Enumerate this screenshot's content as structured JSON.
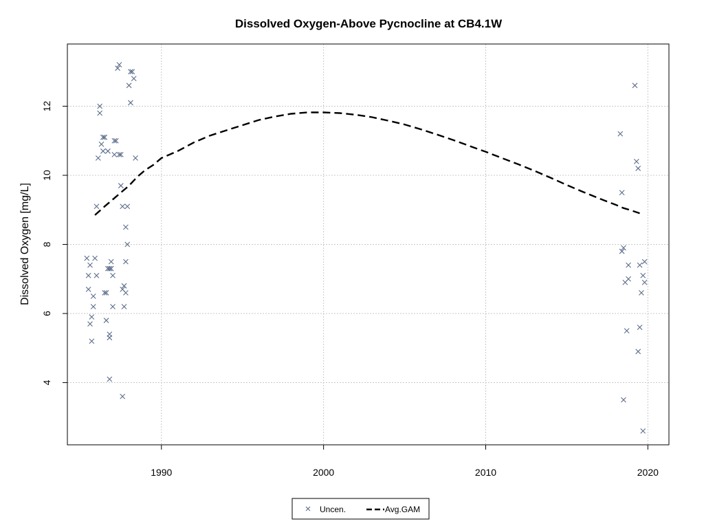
{
  "chart_data": {
    "type": "scatter",
    "title": "Dissolved Oxygen-Above Pycnocline at CB4.1W",
    "xlabel": "",
    "ylabel": "Dissolved Oxygen [mg/L]",
    "xlim": [
      1984.2,
      2021.3
    ],
    "ylim": [
      2.2,
      13.8
    ],
    "x_ticks": [
      1990,
      2000,
      2010,
      2020
    ],
    "y_ticks": [
      4,
      6,
      8,
      10,
      12
    ],
    "grid": true,
    "legend_position": "bottom-center",
    "series": [
      {
        "name": "Uncen.",
        "kind": "points",
        "marker": "x",
        "color": "#5a6c8a",
        "points": [
          [
            1985.4,
            7.6
          ],
          [
            1985.5,
            7.1
          ],
          [
            1985.5,
            6.7
          ],
          [
            1985.6,
            7.4
          ],
          [
            1985.6,
            5.7
          ],
          [
            1985.7,
            5.9
          ],
          [
            1985.7,
            5.2
          ],
          [
            1985.8,
            6.5
          ],
          [
            1985.8,
            6.2
          ],
          [
            1985.9,
            7.6
          ],
          [
            1986.0,
            7.1
          ],
          [
            1986.0,
            9.1
          ],
          [
            1986.1,
            10.5
          ],
          [
            1986.2,
            12.0
          ],
          [
            1986.2,
            11.8
          ],
          [
            1986.4,
            11.1
          ],
          [
            1986.3,
            10.9
          ],
          [
            1986.4,
            10.7
          ],
          [
            1986.5,
            11.1
          ],
          [
            1986.5,
            6.6
          ],
          [
            1986.6,
            6.6
          ],
          [
            1986.6,
            5.8
          ],
          [
            1986.7,
            7.3
          ],
          [
            1986.7,
            10.7
          ],
          [
            1986.8,
            7.3
          ],
          [
            1986.8,
            5.4
          ],
          [
            1986.8,
            5.3
          ],
          [
            1986.8,
            4.1
          ],
          [
            1986.9,
            7.5
          ],
          [
            1986.9,
            7.3
          ],
          [
            1987.0,
            7.1
          ],
          [
            1987.0,
            6.2
          ],
          [
            1987.1,
            10.6
          ],
          [
            1987.1,
            11.0
          ],
          [
            1987.2,
            11.0
          ],
          [
            1987.3,
            13.1
          ],
          [
            1987.4,
            13.2
          ],
          [
            1987.4,
            10.6
          ],
          [
            1987.5,
            10.6
          ],
          [
            1987.5,
            9.7
          ],
          [
            1987.6,
            9.1
          ],
          [
            1987.6,
            6.7
          ],
          [
            1987.6,
            3.6
          ],
          [
            1987.7,
            6.8
          ],
          [
            1987.7,
            6.2
          ],
          [
            1987.8,
            6.6
          ],
          [
            1987.8,
            8.5
          ],
          [
            1987.8,
            7.5
          ],
          [
            1987.9,
            8.0
          ],
          [
            1987.9,
            9.1
          ],
          [
            1988.0,
            12.6
          ],
          [
            1988.1,
            12.1
          ],
          [
            1988.1,
            13.0
          ],
          [
            1988.2,
            13.0
          ],
          [
            1988.3,
            12.8
          ],
          [
            1988.4,
            10.5
          ],
          [
            2018.3,
            11.2
          ],
          [
            2018.4,
            9.5
          ],
          [
            2018.4,
            7.8
          ],
          [
            2018.5,
            7.9
          ],
          [
            2018.5,
            3.5
          ],
          [
            2018.6,
            6.9
          ],
          [
            2018.7,
            5.5
          ],
          [
            2018.8,
            7.4
          ],
          [
            2018.8,
            7.0
          ],
          [
            2019.2,
            12.6
          ],
          [
            2019.3,
            10.4
          ],
          [
            2019.4,
            10.2
          ],
          [
            2019.4,
            4.9
          ],
          [
            2019.5,
            7.4
          ],
          [
            2019.5,
            5.6
          ],
          [
            2019.6,
            6.6
          ],
          [
            2019.7,
            2.6
          ],
          [
            2019.7,
            7.1
          ],
          [
            2019.8,
            6.9
          ],
          [
            2019.8,
            7.5
          ]
        ]
      },
      {
        "name": "Avg.GAM",
        "kind": "line",
        "style": "dashed",
        "color": "#000000",
        "points": [
          [
            1985.9,
            8.85
          ],
          [
            1986.5,
            9.1
          ],
          [
            1987.0,
            9.3
          ],
          [
            1987.5,
            9.5
          ],
          [
            1988.0,
            9.7
          ],
          [
            1988.5,
            9.95
          ],
          [
            1989.0,
            10.15
          ],
          [
            1989.5,
            10.3
          ],
          [
            1990.0,
            10.5
          ],
          [
            1991.0,
            10.7
          ],
          [
            1992.0,
            10.95
          ],
          [
            1993.0,
            11.15
          ],
          [
            1994.0,
            11.3
          ],
          [
            1995.0,
            11.45
          ],
          [
            1996.0,
            11.6
          ],
          [
            1997.0,
            11.7
          ],
          [
            1998.0,
            11.78
          ],
          [
            1999.0,
            11.82
          ],
          [
            2000.0,
            11.82
          ],
          [
            2001.0,
            11.8
          ],
          [
            2002.0,
            11.75
          ],
          [
            2003.0,
            11.68
          ],
          [
            2004.0,
            11.58
          ],
          [
            2005.0,
            11.47
          ],
          [
            2006.0,
            11.33
          ],
          [
            2007.0,
            11.18
          ],
          [
            2008.0,
            11.02
          ],
          [
            2009.0,
            10.85
          ],
          [
            2010.0,
            10.68
          ],
          [
            2011.0,
            10.5
          ],
          [
            2012.0,
            10.32
          ],
          [
            2013.0,
            10.13
          ],
          [
            2014.0,
            9.93
          ],
          [
            2015.0,
            9.72
          ],
          [
            2016.0,
            9.52
          ],
          [
            2017.0,
            9.33
          ],
          [
            2018.0,
            9.15
          ],
          [
            2018.5,
            9.05
          ],
          [
            2019.0,
            8.98
          ],
          [
            2019.5,
            8.9
          ]
        ]
      }
    ]
  }
}
